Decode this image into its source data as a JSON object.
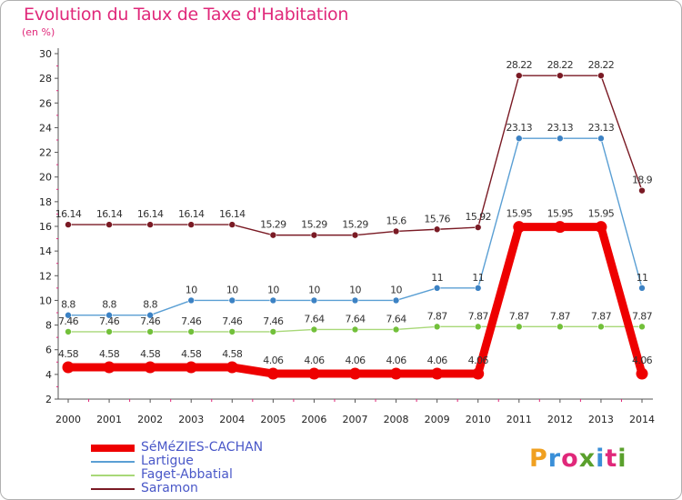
{
  "title": "Evolution du Taux de Taxe d'Habitation",
  "unit": "(en %)",
  "logo": {
    "text": "Proxiti",
    "colors": [
      "#f0a020",
      "#3a8fd8",
      "#e0287a",
      "#5aa02c",
      "#3a8fd8",
      "#e0287a",
      "#5aa02c"
    ]
  },
  "chart_data": {
    "type": "line",
    "title": "Evolution du Taux de Taxe d'Habitation",
    "ylabel": "(en %)",
    "xlabel": "",
    "ylim": [
      2,
      30
    ],
    "yticks": [
      2,
      4,
      6,
      8,
      10,
      12,
      14,
      16,
      18,
      20,
      22,
      24,
      26,
      28,
      30
    ],
    "grid": false,
    "legend_position": "bottom-left",
    "x": [
      "2000",
      "2001",
      "2002",
      "2003",
      "2004",
      "2005",
      "2006",
      "2007",
      "2008",
      "2009",
      "2010",
      "2011",
      "2012",
      "2013",
      "2014"
    ],
    "series": [
      {
        "name": "Saramon",
        "color": "#7a1a24",
        "marker": "#7a1a24",
        "values": [
          16.14,
          16.14,
          16.14,
          16.14,
          16.14,
          15.29,
          15.29,
          15.29,
          15.6,
          15.76,
          15.92,
          28.22,
          28.22,
          28.22,
          18.9
        ],
        "labels": [
          "16.14",
          "16.14",
          "16.14",
          "16.14",
          "16.14",
          "15.29",
          "15.29",
          "15.29",
          "15.6",
          "15.76",
          "15.92",
          "28.22",
          "28.22",
          "28.22",
          "18.9"
        ]
      },
      {
        "name": "Lartigue",
        "color": "#5a9fd4",
        "marker": "#3c82c4",
        "values": [
          8.8,
          8.8,
          8.8,
          10,
          10,
          10,
          10,
          10,
          10,
          11,
          11,
          23.13,
          23.13,
          23.13,
          11
        ],
        "labels": [
          "8.8",
          "8.8",
          "8.8",
          "10",
          "10",
          "10",
          "10",
          "10",
          "10",
          "11",
          "11",
          "23.13",
          "23.13",
          "23.13",
          "11"
        ]
      },
      {
        "name": "Faget-Abbatial",
        "color": "#a8d878",
        "marker": "#72c03a",
        "values": [
          7.46,
          7.46,
          7.46,
          7.46,
          7.46,
          7.46,
          7.64,
          7.64,
          7.64,
          7.87,
          7.87,
          7.87,
          7.87,
          7.87,
          7.87
        ],
        "labels": [
          "7.46",
          "7.46",
          "7.46",
          "7.46",
          "7.46",
          "7.46",
          "7.64",
          "7.64",
          "7.64",
          "7.87",
          "7.87",
          "7.87",
          "7.87",
          "7.87",
          "7.87"
        ]
      },
      {
        "name": "SéMéZIES-CACHAN",
        "color": "#ee0000",
        "marker": "#ee0000",
        "highlight": true,
        "values": [
          4.58,
          4.58,
          4.58,
          4.58,
          4.58,
          4.06,
          4.06,
          4.06,
          4.06,
          4.06,
          4.06,
          15.95,
          15.95,
          15.95,
          4.06
        ],
        "labels": [
          "4.58",
          "4.58",
          "4.58",
          "4.58",
          "4.58",
          "4.06",
          "4.06",
          "4.06",
          "4.06",
          "4.06",
          "4.06",
          "15.95",
          "15.95",
          "15.95",
          "4.06"
        ]
      }
    ],
    "legend_order": [
      "SéMéZIES-CACHAN",
      "Lartigue",
      "Faget-Abbatial",
      "Saramon"
    ]
  }
}
